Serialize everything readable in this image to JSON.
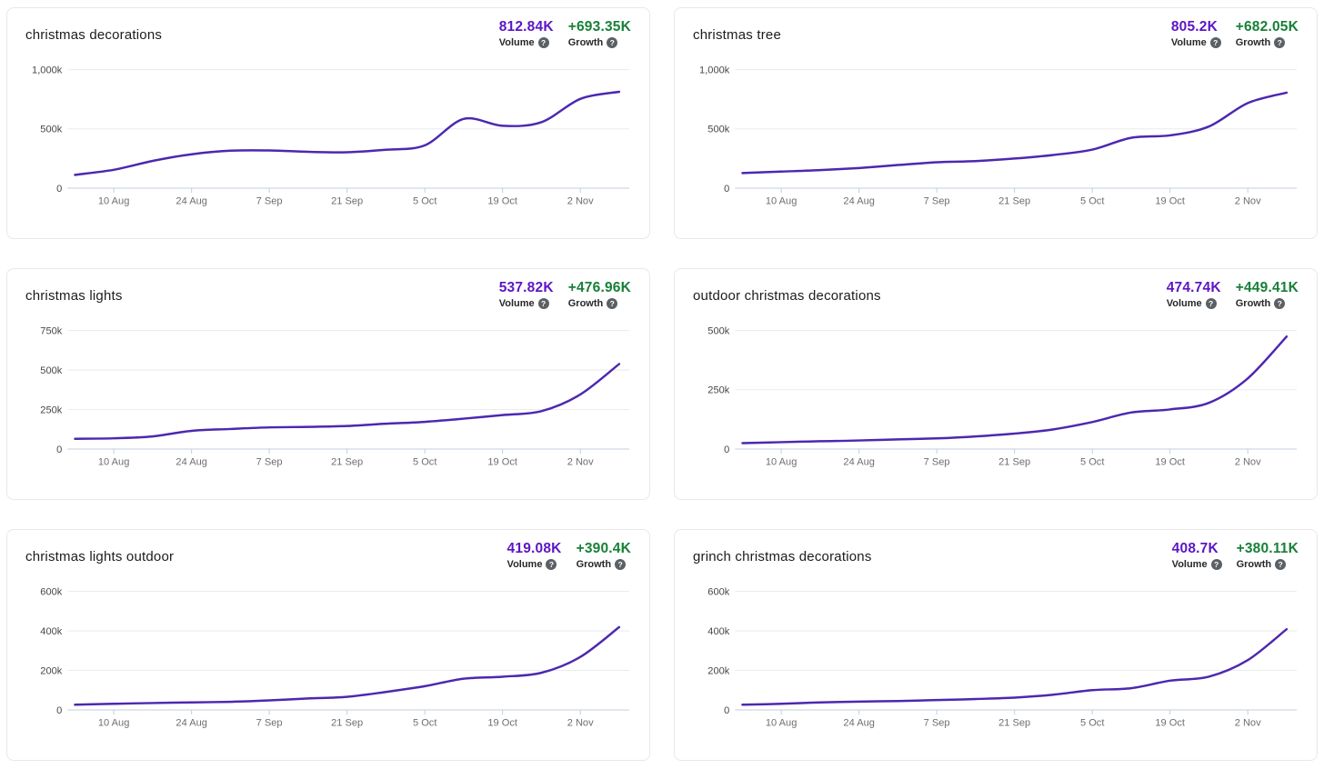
{
  "labels": {
    "volume": "Volume",
    "growth": "Growth"
  },
  "icons": {
    "help": "?"
  },
  "colors": {
    "line": "#4c28b0",
    "volume_value": "#5c16c5",
    "growth_value": "#188038",
    "gridline": "#ececec",
    "axis_line": "#c3cfdb",
    "y_tick_label": "#474747",
    "x_tick_label": "#6e6e6e",
    "card_border": "#e8e8e8"
  },
  "x_axis": {
    "tick_labels": [
      "10 Aug",
      "24 Aug",
      "7 Sep",
      "21 Sep",
      "5 Oct",
      "19 Oct",
      "2 Nov"
    ],
    "tick_indices": [
      1,
      3,
      5,
      7,
      9,
      11,
      13
    ]
  },
  "chart_data": [
    {
      "type": "line",
      "title": "christmas decorations",
      "volume": "812.84K",
      "growth": "+693.35K",
      "y_unit": "k",
      "ylim": [
        0,
        1000
      ],
      "y_ticks": [
        {
          "label": "1,000k",
          "value": 1000
        },
        {
          "label": "500k",
          "value": 500
        },
        {
          "label": "0",
          "value": 0
        }
      ],
      "x": [
        "3 Aug",
        "10 Aug",
        "17 Aug",
        "24 Aug",
        "31 Aug",
        "7 Sep",
        "14 Sep",
        "21 Sep",
        "28 Sep",
        "5 Oct",
        "12 Oct",
        "19 Oct",
        "26 Oct",
        "2 Nov",
        "9 Nov"
      ],
      "values_k": [
        112,
        155,
        230,
        286,
        316,
        318,
        306,
        303,
        324,
        361,
        584,
        526,
        556,
        753,
        812.84
      ]
    },
    {
      "type": "line",
      "title": "christmas tree",
      "volume": "805.2K",
      "growth": "+682.05K",
      "y_unit": "k",
      "ylim": [
        0,
        1000
      ],
      "y_ticks": [
        {
          "label": "1,000k",
          "value": 1000
        },
        {
          "label": "500k",
          "value": 500
        },
        {
          "label": "0",
          "value": 0
        }
      ],
      "x": [
        "3 Aug",
        "10 Aug",
        "17 Aug",
        "24 Aug",
        "31 Aug",
        "7 Sep",
        "14 Sep",
        "21 Sep",
        "28 Sep",
        "5 Oct",
        "12 Oct",
        "19 Oct",
        "26 Oct",
        "2 Nov",
        "9 Nov"
      ],
      "values_k": [
        128,
        140,
        152,
        170,
        195,
        218,
        228,
        250,
        280,
        325,
        425,
        445,
        520,
        718,
        805.2
      ]
    },
    {
      "type": "line",
      "title": "christmas lights",
      "volume": "537.82K",
      "growth": "+476.96K",
      "y_unit": "k",
      "ylim": [
        0,
        750
      ],
      "y_ticks": [
        {
          "label": "750k",
          "value": 750
        },
        {
          "label": "500k",
          "value": 500
        },
        {
          "label": "250k",
          "value": 250
        },
        {
          "label": "0",
          "value": 0
        }
      ],
      "x": [
        "3 Aug",
        "10 Aug",
        "17 Aug",
        "24 Aug",
        "31 Aug",
        "7 Sep",
        "14 Sep",
        "21 Sep",
        "28 Sep",
        "5 Oct",
        "12 Oct",
        "19 Oct",
        "26 Oct",
        "2 Nov",
        "9 Nov"
      ],
      "values_k": [
        65,
        68,
        80,
        115,
        127,
        137,
        140,
        146,
        160,
        172,
        192,
        215,
        240,
        345,
        537.82
      ]
    },
    {
      "type": "line",
      "title": "outdoor christmas decorations",
      "volume": "474.74K",
      "growth": "+449.41K",
      "y_unit": "k",
      "ylim": [
        0,
        500
      ],
      "y_ticks": [
        {
          "label": "500k",
          "value": 500
        },
        {
          "label": "250k",
          "value": 250
        },
        {
          "label": "0",
          "value": 0
        }
      ],
      "x": [
        "3 Aug",
        "10 Aug",
        "17 Aug",
        "24 Aug",
        "31 Aug",
        "7 Sep",
        "14 Sep",
        "21 Sep",
        "28 Sep",
        "5 Oct",
        "12 Oct",
        "19 Oct",
        "26 Oct",
        "2 Nov",
        "9 Nov"
      ],
      "values_k": [
        25,
        29,
        33,
        36,
        41,
        45,
        53,
        65,
        83,
        114,
        154,
        167,
        195,
        298,
        474.74
      ]
    },
    {
      "type": "line",
      "title": "christmas lights outdoor",
      "volume": "419.08K",
      "growth": "+390.4K",
      "y_unit": "k",
      "ylim": [
        0,
        600
      ],
      "y_ticks": [
        {
          "label": "600k",
          "value": 600
        },
        {
          "label": "400k",
          "value": 400
        },
        {
          "label": "200k",
          "value": 200
        },
        {
          "label": "0",
          "value": 0
        }
      ],
      "x": [
        "3 Aug",
        "10 Aug",
        "17 Aug",
        "24 Aug",
        "31 Aug",
        "7 Sep",
        "14 Sep",
        "21 Sep",
        "28 Sep",
        "5 Oct",
        "12 Oct",
        "19 Oct",
        "26 Oct",
        "2 Nov",
        "9 Nov"
      ],
      "values_k": [
        26,
        31,
        35,
        38,
        41,
        48,
        58,
        66,
        91,
        120,
        158,
        168,
        188,
        268,
        419.08
      ]
    },
    {
      "type": "line",
      "title": "grinch christmas decorations",
      "volume": "408.7K",
      "growth": "+380.11K",
      "y_unit": "k",
      "ylim": [
        0,
        600
      ],
      "y_ticks": [
        {
          "label": "600k",
          "value": 600
        },
        {
          "label": "400k",
          "value": 400
        },
        {
          "label": "200k",
          "value": 200
        },
        {
          "label": "0",
          "value": 0
        }
      ],
      "x": [
        "3 Aug",
        "10 Aug",
        "17 Aug",
        "24 Aug",
        "31 Aug",
        "7 Sep",
        "14 Sep",
        "21 Sep",
        "28 Sep",
        "5 Oct",
        "12 Oct",
        "19 Oct",
        "26 Oct",
        "2 Nov",
        "9 Nov"
      ],
      "values_k": [
        26,
        31,
        38,
        42,
        45,
        50,
        55,
        62,
        77,
        100,
        110,
        148,
        168,
        252,
        408.7
      ]
    }
  ]
}
